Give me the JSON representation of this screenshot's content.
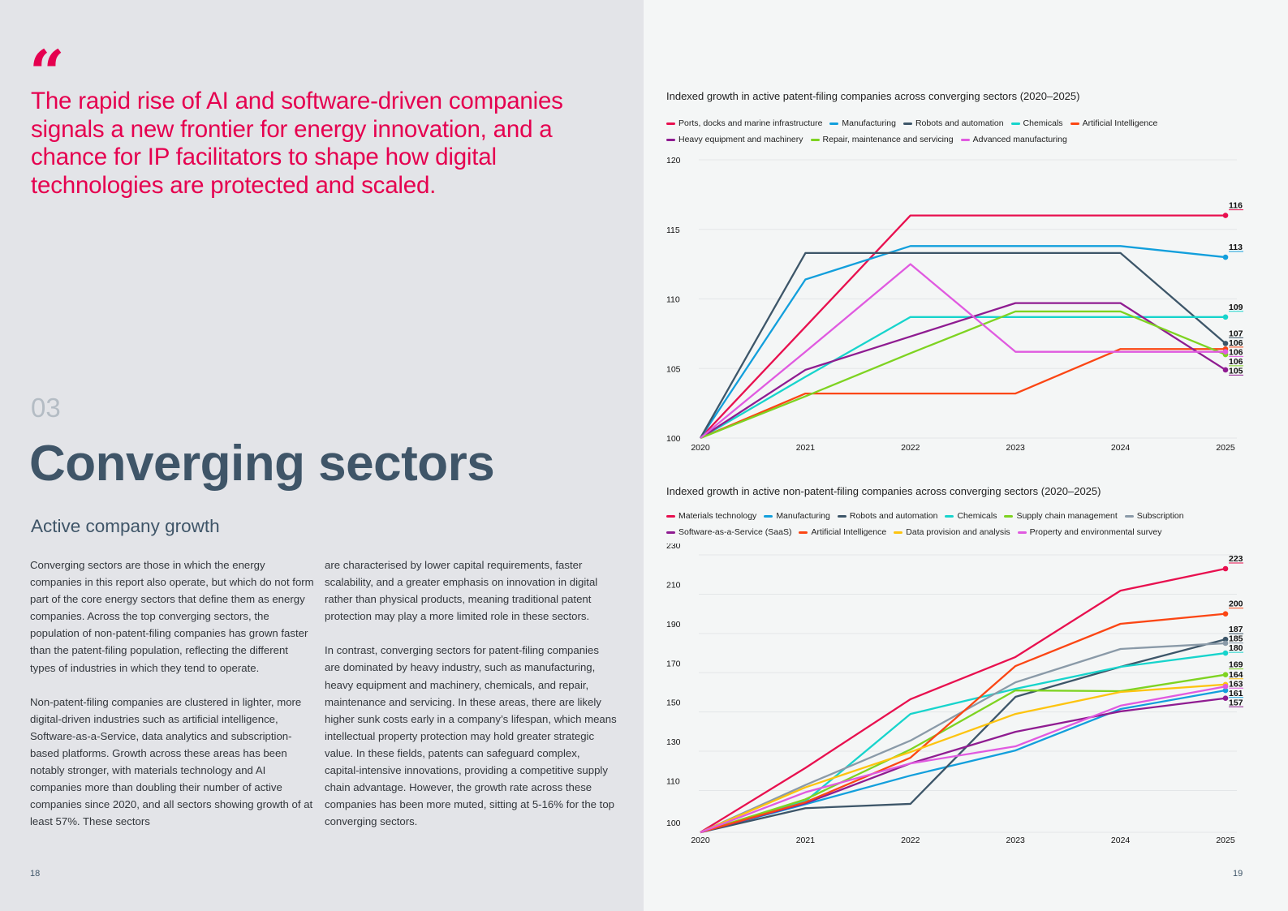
{
  "left_page": {
    "quote_mark": "“",
    "quote": "The rapid rise of AI and software-driven companies signals a new frontier for energy innovation, and a chance for IP facilitators to shape how digital technologies are protected and scaled.",
    "section_number": "03",
    "section_title": "Converging sectors",
    "subtitle": "Active company growth",
    "column1": [
      "Converging sectors are those in which the energy companies in this report also operate, but which do not form part of the core energy sectors that define them as energy companies. Across the top converging sectors, the population of non-patent-filing companies has grown faster than the patent-filing population, reflecting the different types of industries in which they tend to operate.",
      "Non-patent-filing companies are clustered in lighter, more digital-driven industries such as artificial intelligence, Software-as-a-Service, data analytics and subscription-based platforms. Growth across these areas has been notably stronger, with materials technology and AI companies more than doubling their number of active companies since 2020, and all sectors showing growth of at least 57%. These sectors"
    ],
    "column2": [
      "are characterised by lower capital requirements, faster scalability, and a greater emphasis on innovation in digital rather than physical products, meaning traditional patent protection may play a more limited role in these sectors.",
      "In contrast, converging sectors for patent-filing companies are dominated by heavy industry, such as manufacturing, heavy equipment and machinery, chemicals, and repair, maintenance and servicing. In these areas, there are likely higher sunk costs early in a company’s lifespan, which means intellectual property protection may hold greater strategic value. In these fields, patents can safeguard complex, capital-intensive innovations, providing a competitive supply chain advantage. However, the growth rate across these companies has been more muted, sitting at 5-16% for the top converging sectors."
    ],
    "page_number": "18"
  },
  "right_page": {
    "page_number": "19"
  },
  "colors": {
    "accent": "#e5004f",
    "heading": "#3f5568"
  },
  "chart_data": [
    {
      "type": "line",
      "title": "Indexed growth in active patent-filing companies across converging sectors (2020–2025)",
      "xlabel": "",
      "ylabel": "",
      "x": [
        "2020",
        "2021",
        "2022",
        "2023",
        "2024",
        "2025"
      ],
      "yticks": [
        100,
        105,
        110,
        115,
        120
      ],
      "ylim": [
        100,
        120
      ],
      "grid": true,
      "legend": "top",
      "legend_rows": [
        [
          0,
          1,
          2,
          3,
          4
        ],
        [
          5,
          6,
          7
        ]
      ],
      "series": [
        {
          "name": "Ports, docks and marine infrastructure",
          "color": "#e8104f",
          "values": [
            100,
            108,
            116,
            116,
            116,
            116
          ],
          "end_label": "116"
        },
        {
          "name": "Manufacturing",
          "color": "#129fdc",
          "values": [
            100,
            111.4,
            113.8,
            113.8,
            113.8,
            113
          ],
          "end_label": "113"
        },
        {
          "name": "Robots and automation",
          "color": "#3d5669",
          "values": [
            100,
            113.3,
            113.3,
            113.3,
            113.3,
            106.8
          ],
          "end_label": "107"
        },
        {
          "name": "Chemicals",
          "color": "#17d4cc",
          "values": [
            100,
            104.4,
            108.7,
            108.7,
            108.7,
            108.7
          ],
          "end_label": "109"
        },
        {
          "name": "Artificial Intelligence",
          "color": "#fb4614",
          "values": [
            100,
            103.2,
            103.2,
            103.2,
            106.4,
            106.4
          ],
          "end_label": "106"
        },
        {
          "name": "Heavy equipment and machinery",
          "color": "#8f1c91",
          "values": [
            100,
            104.9,
            107.3,
            109.7,
            109.7,
            104.9
          ],
          "end_label": "105"
        },
        {
          "name": "Repair, maintenance and servicing",
          "color": "#7ed321",
          "values": [
            100,
            103,
            106.1,
            109.1,
            109.1,
            106
          ],
          "end_label": "106"
        },
        {
          "name": "Advanced manufacturing",
          "color": "#e05ae0",
          "values": [
            100,
            106.2,
            112.5,
            106.2,
            106.2,
            106.2
          ],
          "end_label": "106"
        }
      ],
      "end_label_order": [
        "116",
        "113",
        "109",
        "107",
        "106",
        "106",
        "106",
        "105"
      ]
    },
    {
      "type": "line",
      "title": "Indexed growth in active non-patent-filing companies across converging sectors (2020–2025)",
      "xlabel": "",
      "ylabel": "",
      "x": [
        "2020",
        "2021",
        "2022",
        "2023",
        "2024",
        "2025"
      ],
      "yticks": [
        100,
        110,
        130,
        150,
        170,
        190,
        210,
        230
      ],
      "ylim": [
        100,
        230
      ],
      "grid": true,
      "legend": "top",
      "legend_rows": [
        [
          0,
          1,
          2,
          3,
          4,
          5
        ],
        [
          6,
          7,
          8,
          9
        ]
      ],
      "series": [
        {
          "name": "Materials technology",
          "color": "#e8104f",
          "values": [
            100,
            121.5,
            156.5,
            178,
            211.8,
            223
          ],
          "end_label": "223"
        },
        {
          "name": "Manufacturing",
          "color": "#129fdc",
          "values": [
            100,
            103,
            117.6,
            130.4,
            151.5,
            161
          ],
          "end_label": "161"
        },
        {
          "name": "Robots and automation",
          "color": "#3d5669",
          "values": [
            100,
            101,
            103.2,
            157.7,
            173,
            187
          ],
          "end_label": "187"
        },
        {
          "name": "Chemicals",
          "color": "#17d4cc",
          "values": [
            100,
            104.5,
            149,
            161.8,
            173,
            180
          ],
          "end_label": "180"
        },
        {
          "name": "Supply chain management",
          "color": "#7ed321",
          "values": [
            100,
            105.5,
            130.9,
            161,
            160.6,
            169
          ],
          "end_label": "169"
        },
        {
          "name": "Subscription",
          "color": "#8a9aa8",
          "values": [
            100,
            112.8,
            135.4,
            165.1,
            182.1,
            185
          ],
          "end_label": "185"
        },
        {
          "name": "Software-as-a-Service (SaaS)",
          "color": "#8f1c91",
          "values": [
            100,
            103.5,
            123.8,
            139.9,
            150.3,
            157
          ],
          "end_label": "157"
        },
        {
          "name": "Artificial Intelligence",
          "color": "#fb4614",
          "values": [
            100,
            104,
            126.7,
            173.4,
            194.9,
            200
          ],
          "end_label": "200"
        },
        {
          "name": "Data provision and analysis",
          "color": "#fdc40f",
          "values": [
            100,
            111.6,
            129.6,
            149,
            160.2,
            164
          ],
          "end_label": "164"
        },
        {
          "name": "Property and environmental survey",
          "color": "#e05ae0",
          "values": [
            100,
            109.1,
            123.8,
            132.5,
            153.2,
            163
          ],
          "end_label": "163"
        }
      ]
    }
  ]
}
